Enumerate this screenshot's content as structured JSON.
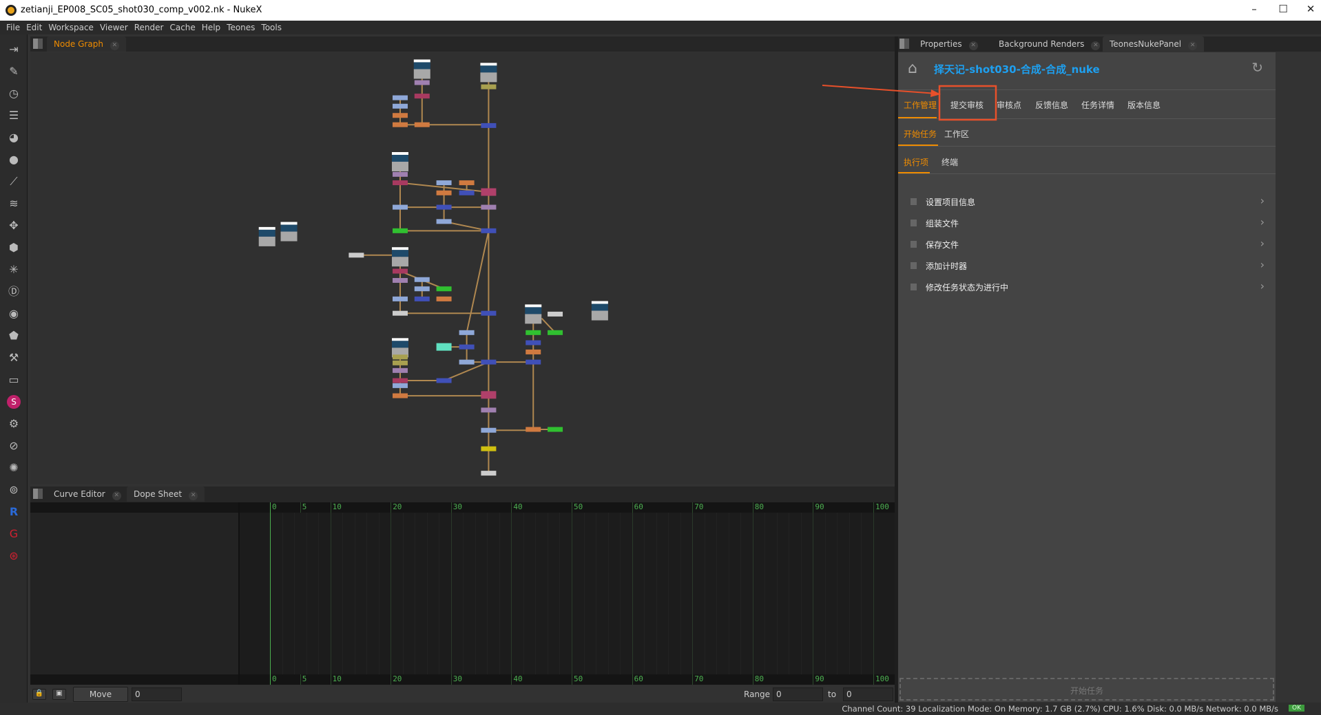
{
  "window": {
    "title": "zetianji_EP008_SC05_shot030_comp_v002.nk - NukeX",
    "controls": [
      "minimize",
      "maximize",
      "close"
    ]
  },
  "menu": [
    "File",
    "Edit",
    "Workspace",
    "Viewer",
    "Render",
    "Cache",
    "Help",
    "Teones",
    "Tools"
  ],
  "toolbar_icons": [
    "image-icon",
    "draw-icon",
    "time-icon",
    "channel-icon",
    "color-icon",
    "filter-icon",
    "keyer-icon",
    "merge-icon",
    "transform-icon",
    "3d-icon",
    "particles-icon",
    "deep-icon",
    "views-icon",
    "metadata-icon",
    "toolsets-icon",
    "other-icon",
    "plugin-s-icon",
    "plugin-a-icon",
    "plugin-b-icon",
    "plugin-c-icon",
    "plugin-d-icon",
    "plugin-r-icon",
    "plugin-g-icon",
    "plugin-h-icon"
  ],
  "node_graph": {
    "tab": "Node Graph"
  },
  "bottom_tabs": [
    "Curve Editor",
    "Dope Sheet"
  ],
  "dope": {
    "ticks": [
      "0",
      "5",
      "10",
      "20",
      "30",
      "40",
      "50",
      "60",
      "70",
      "80",
      "90",
      "100"
    ],
    "move_label": "Move",
    "move_value": "0",
    "range_label": "Range",
    "range_from": "0",
    "to_label": "to",
    "range_to": "0"
  },
  "right_tabs": [
    "Properties",
    "Background Renders",
    "TeonesNukePanel"
  ],
  "panel": {
    "title": "择天记-shot030-合成-合成_nuke",
    "nav_tabs": [
      "工作管理",
      "提交审核",
      "审核点",
      "反馈信息",
      "任务详情",
      "版本信息"
    ],
    "sub_tabs": [
      "开始任务",
      "工作区"
    ],
    "sub_tabs2": [
      "执行项",
      "终端"
    ],
    "items": [
      "设置项目信息",
      "组装文件",
      "保存文件",
      "添加计时器",
      "修改任务状态为进行中"
    ],
    "start_button": "开始任务",
    "accent": "#f08c00",
    "title_color": "#1ea0f0",
    "highlight_color": "#e8502a"
  },
  "status": {
    "text": "Channel Count: 39 Localization Mode: On Memory: 1.7 GB (2.7%) CPU: 1.6% Disk: 0.0 MB/s Network: 0.0 MB/s",
    "badge": "OK"
  }
}
